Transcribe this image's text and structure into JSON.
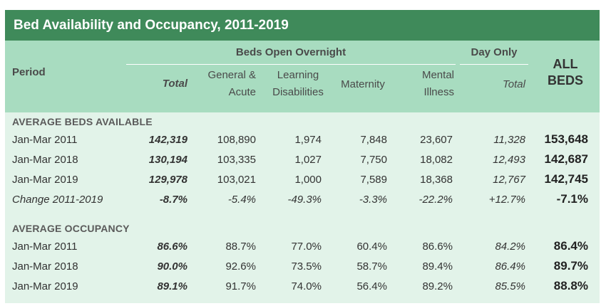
{
  "title": "Bed Availability and Occupancy, 2011-2019",
  "headers": {
    "period": "Period",
    "beds_open_overnight": "Beds Open Overnight",
    "day_only": "Day Only",
    "all_beds_line1": "ALL",
    "all_beds_line2": "BEDS",
    "total": "Total",
    "general_acute_line1": "General &",
    "general_acute_line2": "Acute",
    "learning_line1": "Learning",
    "learning_line2": "Disabilities",
    "maternity": "Maternity",
    "mental_line1": "Mental",
    "mental_line2": "Illness",
    "day_total": "Total"
  },
  "sections": [
    {
      "label": "AVERAGE BEDS AVAILABLE",
      "rows": [
        {
          "period": "Jan-Mar 2011",
          "total": "142,319",
          "general_acute": "108,890",
          "learning": "1,974",
          "maternity": "7,848",
          "mental": "23,607",
          "day_only": "11,328",
          "all": "153,648"
        },
        {
          "period": "Jan-Mar 2018",
          "total": "130,194",
          "general_acute": "103,335",
          "learning": "1,027",
          "maternity": "7,750",
          "mental": "18,082",
          "day_only": "12,493",
          "all": "142,687"
        },
        {
          "period": "Jan-Mar 2019",
          "total": "129,978",
          "general_acute": "103,021",
          "learning": "1,000",
          "maternity": "7,589",
          "mental": "18,368",
          "day_only": "12,767",
          "all": "142,745"
        },
        {
          "period": "Change 2011-2019",
          "total": "-8.7%",
          "general_acute": "-5.4%",
          "learning": "-49.3%",
          "maternity": "-3.3%",
          "mental": "-22.2%",
          "day_only": "+12.7%",
          "all": "-7.1%"
        }
      ]
    },
    {
      "label": "AVERAGE OCCUPANCY",
      "rows": [
        {
          "period": "Jan-Mar 2011",
          "total": "86.6%",
          "general_acute": "88.7%",
          "learning": "77.0%",
          "maternity": "60.4%",
          "mental": "86.6%",
          "day_only": "84.2%",
          "all": "86.4%"
        },
        {
          "period": "Jan-Mar 2018",
          "total": "90.0%",
          "general_acute": "92.6%",
          "learning": "73.5%",
          "maternity": "58.7%",
          "mental": "89.4%",
          "day_only": "86.4%",
          "all": "89.7%"
        },
        {
          "period": "Jan-Mar 2019",
          "total": "89.1%",
          "general_acute": "91.7%",
          "learning": "74.0%",
          "maternity": "56.4%",
          "mental": "89.2%",
          "day_only": "85.5%",
          "all": "88.8%"
        }
      ]
    }
  ],
  "colors": {
    "title_bar": "#3f8a5a",
    "header_band": "#a8dcc0",
    "body_band": "#e2f3e9"
  }
}
